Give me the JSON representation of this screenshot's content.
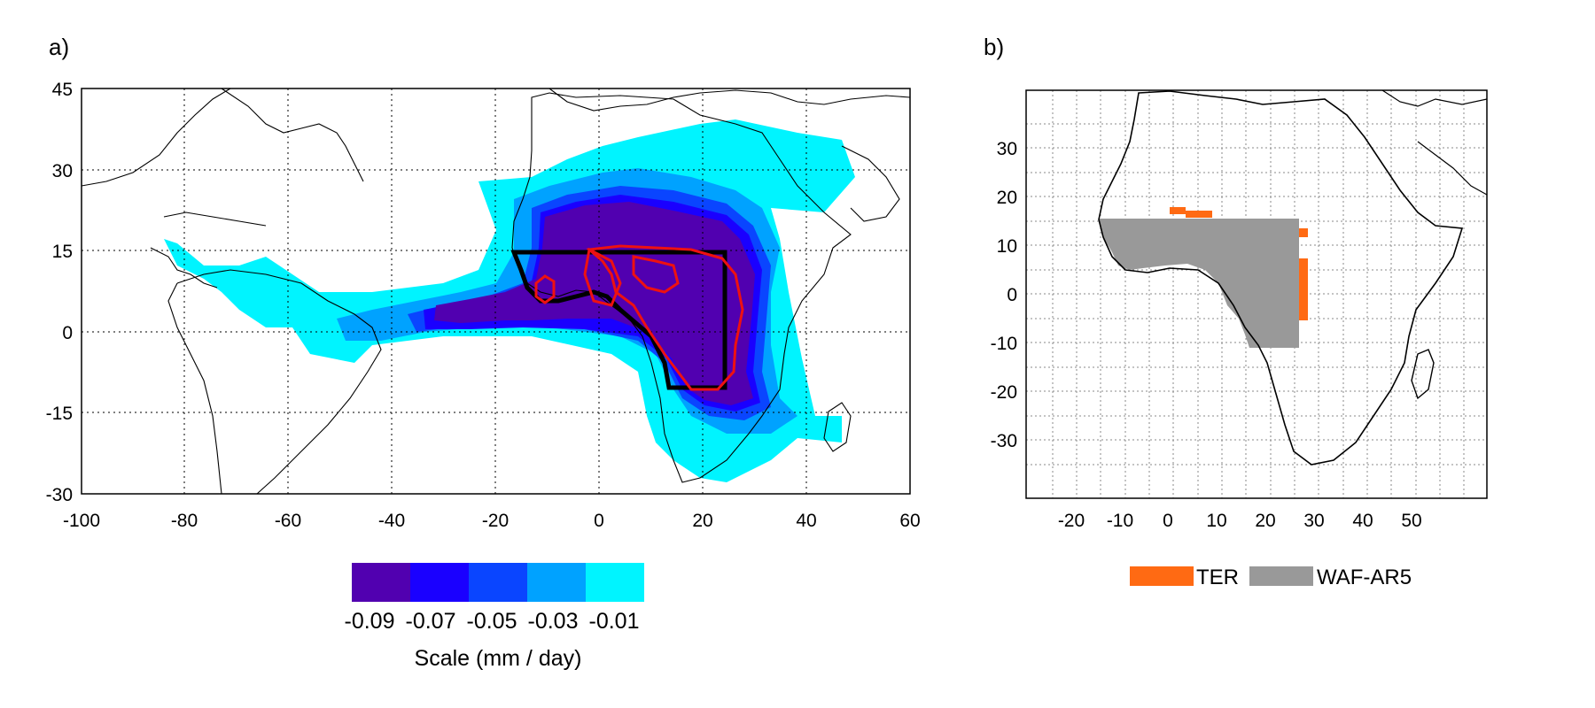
{
  "panel_a": {
    "label": "a)",
    "x_ticks": [
      "-100",
      "-80",
      "-60",
      "-40",
      "-20",
      "0",
      "20",
      "40",
      "60"
    ],
    "y_ticks": [
      "45",
      "30",
      "15",
      "0",
      "-15",
      "-30"
    ],
    "x_range": [
      -100,
      60
    ],
    "y_range": [
      -30,
      45
    ],
    "colorbar": {
      "colors": [
        "#5100b0",
        "#1a00ff",
        "#0a45ff",
        "#00a2ff",
        "#00f4ff"
      ],
      "labels": [
        "-0.09",
        "-0.07",
        "-0.05",
        "-0.03",
        "-0.01"
      ],
      "title": "Scale (mm / day)"
    }
  },
  "panel_b": {
    "label": "b)",
    "x_ticks": [
      "-20",
      "-10",
      "0",
      "10",
      "20",
      "30",
      "40",
      "50"
    ],
    "y_ticks": [
      "30",
      "20",
      "10",
      "0",
      "-10",
      "-20",
      "-30"
    ],
    "legend": [
      {
        "name": "TER",
        "color": "#ff6a13"
      },
      {
        "name": "WAF-AR5",
        "color": "#999999"
      }
    ]
  }
}
